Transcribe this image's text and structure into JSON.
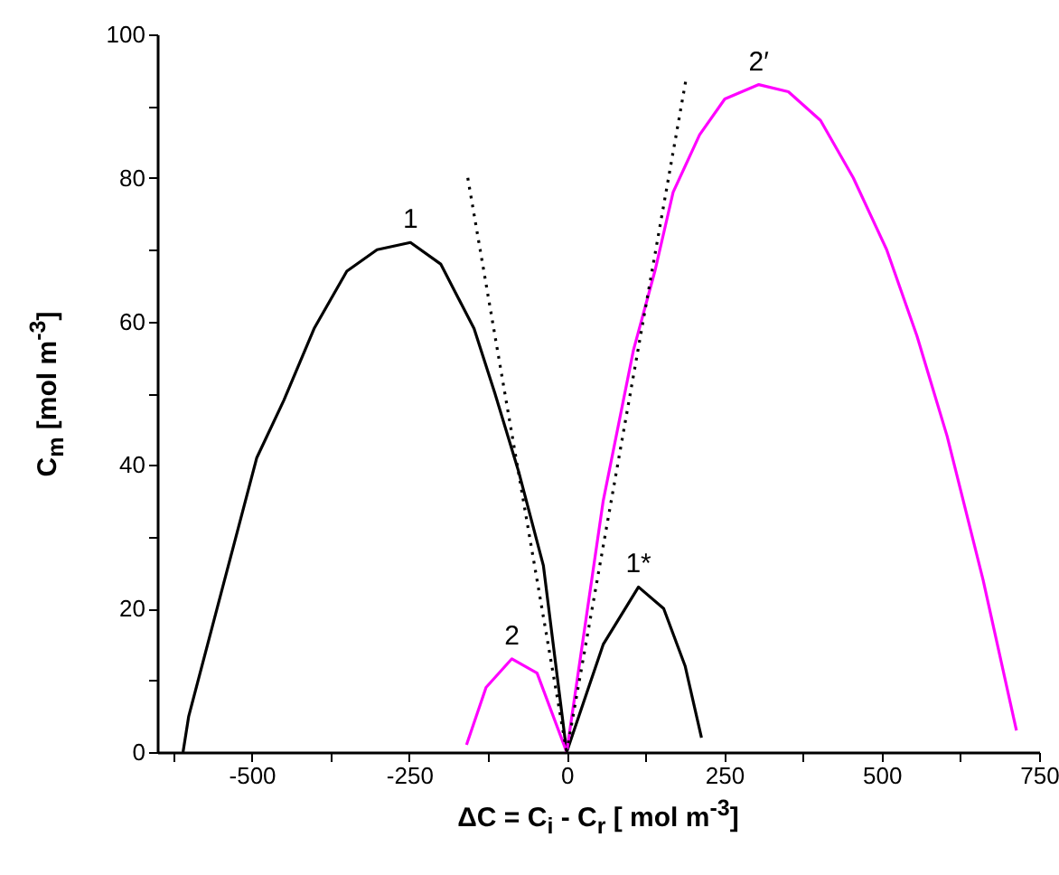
{
  "chart_data": {
    "type": "line",
    "xlabel": "ΔC = C$_{i}$ - C$_{r}$ [ mol m$^{-3}$]",
    "ylabel": "C$_{m}$ [mol m$^{-3}$]",
    "xlim": [
      -650,
      750
    ],
    "xticks": [
      {
        "value": -625,
        "label": null
      },
      -500,
      {
        "value": -375,
        "label": null
      },
      -250,
      {
        "value": -125,
        "label": null
      },
      0,
      {
        "value": 125,
        "label": null
      },
      250,
      {
        "value": 375,
        "label": null
      },
      500,
      {
        "value": 625,
        "label": null
      },
      750
    ],
    "ylim": [
      0,
      100
    ],
    "yticks": [
      0,
      {
        "value": 10,
        "label": null
      },
      20,
      {
        "value": 30,
        "label": null
      },
      40,
      {
        "value": 50,
        "label": null
      },
      60,
      {
        "value": 70,
        "label": null
      },
      80,
      {
        "value": 90,
        "label": null
      },
      100
    ],
    "grid": false,
    "series": [
      {
        "name": "1",
        "color": "#000000",
        "x": [
          -609,
          -600,
          -555,
          -492,
          -449,
          -401,
          -349,
          -301,
          -248,
          -200,
          -147,
          -114,
          -76,
          -37,
          0
        ],
        "values": [
          0,
          5,
          20,
          41,
          49,
          59,
          67,
          70,
          71,
          68,
          59,
          50,
          39,
          26,
          0
        ]
      },
      {
        "name": "1*",
        "color": "#000000",
        "x": [
          0,
          58,
          114,
          154,
          188,
          214
        ],
        "values": [
          0,
          15,
          23,
          20,
          12,
          2
        ]
      },
      {
        "name": "2",
        "color": "#ff00ff",
        "x": [
          -159,
          -128,
          -87,
          -47,
          0
        ],
        "values": [
          1,
          9,
          13,
          11,
          0
        ]
      },
      {
        "name": "2′",
        "color": "#ff00ff",
        "x": [
          0,
          58,
          106,
          140,
          169,
          211,
          251,
          305,
          352,
          403,
          455,
          508,
          556,
          604,
          661,
          714
        ],
        "values": [
          0,
          35,
          56,
          67,
          78,
          86,
          91,
          93,
          92,
          88,
          80,
          70,
          58,
          44,
          24,
          3
        ]
      },
      {
        "color": "#000000",
        "line_style": "dotted",
        "x": [
          -157,
          0
        ],
        "values": [
          80,
          0
        ]
      },
      {
        "color": "#000000",
        "line_style": "dotted",
        "x": [
          0,
          190
        ],
        "values": [
          0,
          94
        ]
      }
    ]
  }
}
